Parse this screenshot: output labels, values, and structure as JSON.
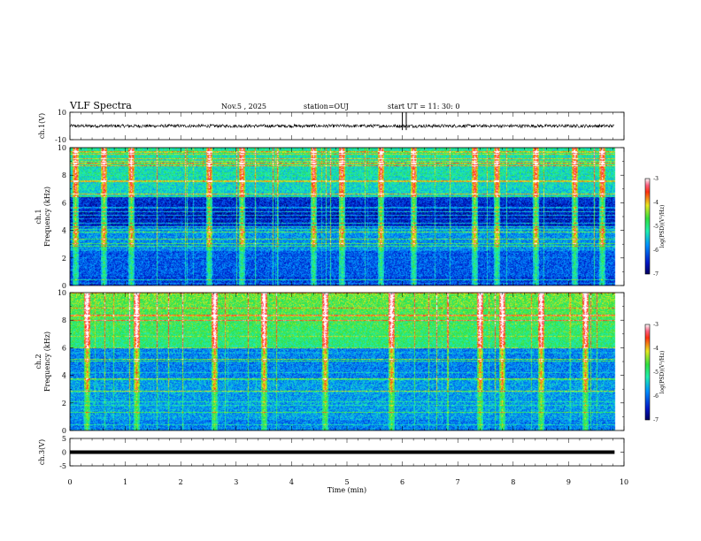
{
  "header": {
    "title": "VLF Spectra",
    "date": "Nov.5 , 2025",
    "station": "station=OUJ",
    "start": "start UT = 11: 30: 0"
  },
  "chart_data": [
    {
      "type": "line",
      "panel": "ch1-waveform",
      "ylabel": "ch.1(V)",
      "ylim": [
        -10,
        10
      ],
      "yticks": [
        10,
        -10
      ],
      "x_range_min": [
        0,
        9.83
      ],
      "baseline_level_V": 0,
      "noise_amplitude_V": 1.2,
      "spikes_at_min": [
        6.0,
        6.07
      ]
    },
    {
      "type": "heatmap",
      "panel": "ch1-spectrogram",
      "ylabel": "ch.1\nFrequency (kHz)",
      "ylim": [
        0,
        10
      ],
      "yticks": [
        0,
        2,
        4,
        6,
        8,
        10
      ],
      "colorbar": {
        "label": "log(PSD)(V²/Hz)",
        "range": [
          -7,
          -3
        ],
        "ticks": [
          -3,
          -4,
          -5,
          -6,
          -7
        ]
      },
      "features": {
        "dark_band_kHz": [
          4.2,
          6.0
        ],
        "bright_band_kHz": [
          6.5,
          10
        ],
        "vertical_bursts_min": [
          0.1,
          0.6,
          1.1,
          2.5,
          3.1,
          4.4,
          4.9,
          5.6,
          6.2,
          7.3,
          7.7,
          8.4,
          9.1,
          9.6
        ]
      }
    },
    {
      "type": "heatmap",
      "panel": "ch2-spectrogram",
      "ylabel": "ch.2\nFrequency (kHz)",
      "ylim": [
        0,
        10
      ],
      "yticks": [
        0,
        2,
        4,
        6,
        8,
        10
      ],
      "colorbar": {
        "label": "log(PSD)(V²/Hz)",
        "range": [
          -7,
          -3
        ],
        "ticks": [
          -3,
          -4,
          -5,
          -6,
          -7
        ]
      },
      "features": {
        "bright_band_kHz": [
          6.0,
          10
        ],
        "vertical_bursts_min": [
          0.3,
          1.2,
          2.6,
          3.5,
          4.6,
          5.8,
          7.4,
          7.8,
          8.5,
          9.3
        ]
      }
    },
    {
      "type": "line",
      "panel": "ch3-waveform",
      "ylabel": "ch.3(V)",
      "ylim": [
        -5,
        5
      ],
      "yticks": [
        5,
        0,
        -5
      ],
      "x_range_min": [
        0,
        9.83
      ],
      "baseline_level_V": 0
    }
  ],
  "xaxis": {
    "label": "Time (min)",
    "ticks": [
      0,
      1,
      2,
      3,
      4,
      5,
      6,
      7,
      8,
      9,
      10
    ],
    "xlim": [
      0,
      10
    ]
  }
}
